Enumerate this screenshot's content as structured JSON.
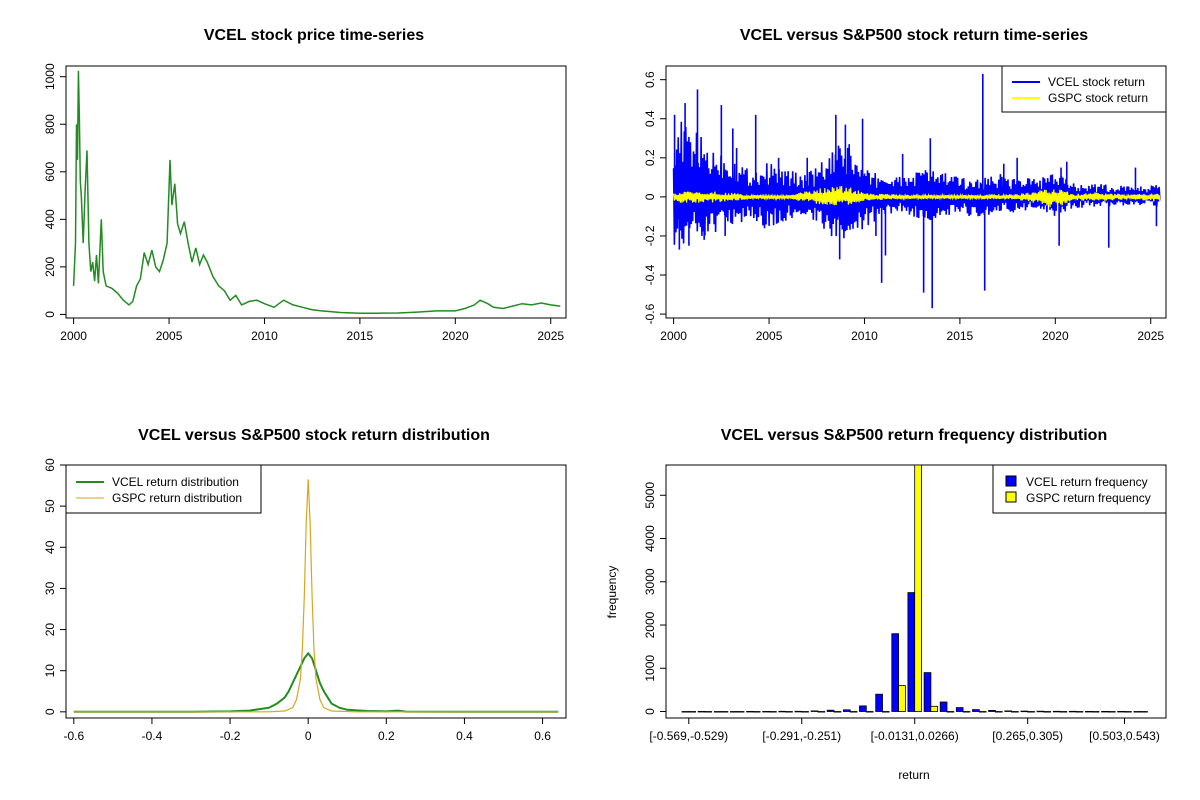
{
  "colors": {
    "vcel_price": "#228b22",
    "vcel_return": "#0000ff",
    "gspc_return": "#ffff00",
    "vcel_density": "#228b22",
    "gspc_density": "#daa520",
    "hist_vcel": "#0000ff",
    "hist_gspc": "#ffff00"
  },
  "chart_data": [
    {
      "id": "price",
      "type": "line",
      "title": "VCEL stock price time-series",
      "xlabel": "",
      "ylabel": "",
      "xlim": [
        1999.6,
        2025.8
      ],
      "ylim": [
        -15,
        1045
      ],
      "xticks": [
        2000,
        2005,
        2010,
        2015,
        2020,
        2025
      ],
      "yticks": [
        0,
        200,
        400,
        600,
        800,
        1000
      ],
      "series": [
        {
          "color_key": "vcel_price",
          "points": [
            [
              2000.0,
              120
            ],
            [
              2000.1,
              300
            ],
            [
              2000.15,
              800
            ],
            [
              2000.2,
              650
            ],
            [
              2000.25,
              1025
            ],
            [
              2000.3,
              820
            ],
            [
              2000.35,
              560
            ],
            [
              2000.4,
              500
            ],
            [
              2000.5,
              300
            ],
            [
              2000.6,
              520
            ],
            [
              2000.7,
              690
            ],
            [
              2000.8,
              300
            ],
            [
              2000.9,
              180
            ],
            [
              2001.0,
              220
            ],
            [
              2001.1,
              140
            ],
            [
              2001.2,
              250
            ],
            [
              2001.3,
              130
            ],
            [
              2001.45,
              400
            ],
            [
              2001.55,
              180
            ],
            [
              2001.7,
              120
            ],
            [
              2002.0,
              110
            ],
            [
              2002.3,
              90
            ],
            [
              2002.6,
              60
            ],
            [
              2002.9,
              40
            ],
            [
              2003.1,
              55
            ],
            [
              2003.3,
              120
            ],
            [
              2003.5,
              150
            ],
            [
              2003.7,
              260
            ],
            [
              2003.9,
              210
            ],
            [
              2004.1,
              270
            ],
            [
              2004.3,
              200
            ],
            [
              2004.5,
              180
            ],
            [
              2004.7,
              230
            ],
            [
              2004.9,
              300
            ],
            [
              2005.05,
              650
            ],
            [
              2005.15,
              460
            ],
            [
              2005.3,
              550
            ],
            [
              2005.45,
              380
            ],
            [
              2005.6,
              340
            ],
            [
              2005.8,
              390
            ],
            [
              2006.0,
              300
            ],
            [
              2006.2,
              220
            ],
            [
              2006.4,
              280
            ],
            [
              2006.6,
              210
            ],
            [
              2006.8,
              250
            ],
            [
              2007.0,
              220
            ],
            [
              2007.3,
              160
            ],
            [
              2007.6,
              120
            ],
            [
              2007.9,
              100
            ],
            [
              2008.2,
              60
            ],
            [
              2008.5,
              80
            ],
            [
              2008.8,
              40
            ],
            [
              2009.2,
              55
            ],
            [
              2009.6,
              60
            ],
            [
              2010.0,
              45
            ],
            [
              2010.5,
              30
            ],
            [
              2011.0,
              60
            ],
            [
              2011.5,
              40
            ],
            [
              2012.0,
              30
            ],
            [
              2012.5,
              20
            ],
            [
              2013.0,
              15
            ],
            [
              2014.0,
              8
            ],
            [
              2015.0,
              5
            ],
            [
              2016.0,
              5
            ],
            [
              2017.0,
              6
            ],
            [
              2018.0,
              10
            ],
            [
              2019.0,
              15
            ],
            [
              2020.0,
              15
            ],
            [
              2020.5,
              25
            ],
            [
              2021.0,
              40
            ],
            [
              2021.3,
              60
            ],
            [
              2021.7,
              45
            ],
            [
              2022.0,
              30
            ],
            [
              2022.5,
              25
            ],
            [
              2023.0,
              35
            ],
            [
              2023.5,
              45
            ],
            [
              2024.0,
              40
            ],
            [
              2024.5,
              48
            ],
            [
              2025.0,
              40
            ],
            [
              2025.5,
              35
            ]
          ]
        }
      ]
    },
    {
      "id": "returns",
      "type": "line",
      "title": "VCEL versus S&P500 stock return time-series",
      "xlabel": "",
      "ylabel": "",
      "xlim": [
        1999.6,
        2025.8
      ],
      "ylim": [
        -0.62,
        0.67
      ],
      "xticks": [
        2000,
        2005,
        2010,
        2015,
        2020,
        2025
      ],
      "yticks": [
        -0.6,
        -0.4,
        -0.2,
        0.0,
        0.2,
        0.4,
        0.6
      ],
      "legend": {
        "position": "top-right",
        "entries": [
          "VCEL stock return",
          "GSPC stock return"
        ]
      },
      "series": [
        {
          "name": "VCEL stock return",
          "color_key": "vcel_return",
          "band": [
            [
              2000,
              0.42,
              -0.26
            ],
            [
              2001,
              0.35,
              -0.22
            ],
            [
              2002,
              0.26,
              -0.2
            ],
            [
              2003,
              0.22,
              -0.18
            ],
            [
              2004,
              0.14,
              -0.1
            ],
            [
              2005,
              0.18,
              -0.18
            ],
            [
              2006,
              0.14,
              -0.12
            ],
            [
              2007,
              0.12,
              -0.1
            ],
            [
              2008,
              0.2,
              -0.2
            ],
            [
              2009,
              0.3,
              -0.26
            ],
            [
              2010,
              0.14,
              -0.16
            ],
            [
              2011,
              0.12,
              -0.1
            ],
            [
              2012,
              0.1,
              -0.08
            ],
            [
              2013,
              0.15,
              -0.12
            ],
            [
              2014,
              0.14,
              -0.12
            ],
            [
              2015,
              0.1,
              -0.08
            ],
            [
              2016,
              0.1,
              -0.12
            ],
            [
              2017,
              0.12,
              -0.08
            ],
            [
              2018,
              0.1,
              -0.08
            ],
            [
              2019,
              0.1,
              -0.06
            ],
            [
              2020,
              0.12,
              -0.1
            ],
            [
              2021,
              0.08,
              -0.06
            ],
            [
              2022,
              0.07,
              -0.05
            ],
            [
              2023,
              0.06,
              -0.05
            ],
            [
              2024,
              0.06,
              -0.04
            ],
            [
              2025,
              0.06,
              -0.05
            ]
          ],
          "spikes": [
            [
              2000.05,
              0.42
            ],
            [
              2000.3,
              -0.27
            ],
            [
              2000.6,
              0.48
            ],
            [
              2000.8,
              -0.25
            ],
            [
              2001.1,
              0.22
            ],
            [
              2001.25,
              0.55
            ],
            [
              2001.6,
              -0.22
            ],
            [
              2002.5,
              0.47
            ],
            [
              2002.7,
              -0.2
            ],
            [
              2003.1,
              0.35
            ],
            [
              2003.3,
              0.25
            ],
            [
              2004.3,
              0.42
            ],
            [
              2005.5,
              0.2
            ],
            [
              2007.0,
              0.2
            ],
            [
              2008.5,
              0.42
            ],
            [
              2008.7,
              -0.32
            ],
            [
              2009.0,
              0.37
            ],
            [
              2009.2,
              0.27
            ],
            [
              2009.9,
              0.4
            ],
            [
              2010.6,
              -0.2
            ],
            [
              2010.9,
              -0.44
            ],
            [
              2011.1,
              -0.3
            ],
            [
              2012.0,
              0.22
            ],
            [
              2013.1,
              -0.49
            ],
            [
              2013.45,
              0.3
            ],
            [
              2013.55,
              -0.57
            ],
            [
              2016.2,
              0.63
            ],
            [
              2016.3,
              -0.48
            ],
            [
              2017.3,
              0.17
            ],
            [
              2018.0,
              0.2
            ],
            [
              2020.2,
              -0.25
            ],
            [
              2020.3,
              0.15
            ],
            [
              2020.6,
              0.18
            ],
            [
              2022.8,
              -0.26
            ],
            [
              2024.2,
              0.15
            ],
            [
              2025.3,
              -0.15
            ]
          ]
        },
        {
          "name": "GSPC stock return",
          "color_key": "gspc_return",
          "band": [
            [
              2000,
              0.025,
              -0.03
            ],
            [
              2002,
              0.03,
              -0.03
            ],
            [
              2004,
              0.012,
              -0.012
            ],
            [
              2006,
              0.01,
              -0.01
            ],
            [
              2008,
              0.05,
              -0.05
            ],
            [
              2009,
              0.06,
              -0.05
            ],
            [
              2010,
              0.02,
              -0.02
            ],
            [
              2012,
              0.012,
              -0.012
            ],
            [
              2014,
              0.01,
              -0.01
            ],
            [
              2016,
              0.012,
              -0.012
            ],
            [
              2018,
              0.015,
              -0.015
            ],
            [
              2020,
              0.05,
              -0.06
            ],
            [
              2021,
              0.015,
              -0.015
            ],
            [
              2022,
              0.025,
              -0.025
            ],
            [
              2024,
              0.012,
              -0.012
            ],
            [
              2025,
              0.02,
              -0.025
            ]
          ]
        }
      ]
    },
    {
      "id": "density",
      "type": "line",
      "title": "VCEL versus S&P500 stock return distribution",
      "xlabel": "",
      "ylabel": "",
      "xlim": [
        -0.62,
        0.66
      ],
      "ylim": [
        -1.5,
        60
      ],
      "xticks": [
        -0.6,
        -0.4,
        -0.2,
        0.0,
        0.2,
        0.4,
        0.6
      ],
      "yticks": [
        0,
        10,
        20,
        30,
        40,
        50,
        60
      ],
      "legend": {
        "position": "top-left",
        "entries": [
          "VCEL return distribution",
          "GSPC return distribution"
        ]
      },
      "series": [
        {
          "name": "VCEL return distribution",
          "color_key": "vcel_density",
          "points": [
            [
              -0.6,
              0
            ],
            [
              -0.3,
              0
            ],
            [
              -0.2,
              0.1
            ],
            [
              -0.15,
              0.3
            ],
            [
              -0.1,
              1
            ],
            [
              -0.08,
              2
            ],
            [
              -0.06,
              3.5
            ],
            [
              -0.05,
              5
            ],
            [
              -0.04,
              7
            ],
            [
              -0.03,
              9
            ],
            [
              -0.02,
              11
            ],
            [
              -0.01,
              13
            ],
            [
              0.0,
              14.2
            ],
            [
              0.01,
              13
            ],
            [
              0.02,
              10
            ],
            [
              0.03,
              7
            ],
            [
              0.04,
              5
            ],
            [
              0.05,
              3.5
            ],
            [
              0.06,
              2
            ],
            [
              0.08,
              1
            ],
            [
              0.1,
              0.5
            ],
            [
              0.15,
              0.2
            ],
            [
              0.2,
              0.1
            ],
            [
              0.23,
              0.3
            ],
            [
              0.25,
              0.05
            ],
            [
              0.4,
              0.02
            ],
            [
              0.64,
              0
            ]
          ]
        },
        {
          "name": "GSPC return distribution",
          "color_key": "gspc_density",
          "points": [
            [
              -0.6,
              0
            ],
            [
              -0.1,
              0
            ],
            [
              -0.06,
              0.2
            ],
            [
              -0.04,
              1
            ],
            [
              -0.03,
              3
            ],
            [
              -0.02,
              8
            ],
            [
              -0.015,
              15
            ],
            [
              -0.01,
              28
            ],
            [
              -0.005,
              46
            ],
            [
              0.0,
              56.5
            ],
            [
              0.005,
              46
            ],
            [
              0.01,
              28
            ],
            [
              0.015,
              15
            ],
            [
              0.02,
              8
            ],
            [
              0.03,
              3
            ],
            [
              0.04,
              1
            ],
            [
              0.06,
              0.2
            ],
            [
              0.12,
              0
            ],
            [
              0.64,
              0
            ]
          ]
        }
      ]
    },
    {
      "id": "histogram",
      "type": "bar",
      "title": "VCEL versus S&P500 return frequency distribution",
      "xlabel": "return",
      "ylabel": "frequency",
      "ylim": [
        -150,
        5700
      ],
      "yticks": [
        0,
        1000,
        2000,
        3000,
        4000,
        5000
      ],
      "tick_labels": [
        "[-0.569,-0.529)",
        "[-0.291,-0.251)",
        "[-0.0131,0.0266)",
        "[0.265,0.305)",
        "[0.503,0.543)"
      ],
      "tick_label_bins": [
        0,
        7,
        14,
        21,
        27
      ],
      "bins": 29,
      "legend": {
        "position": "top-right",
        "entries": [
          "VCEL return frequency",
          "GSPC return frequency"
        ]
      },
      "series": [
        {
          "name": "VCEL return frequency",
          "color_key": "hist_vcel",
          "values": [
            1,
            2,
            1,
            1,
            2,
            3,
            4,
            5,
            15,
            30,
            40,
            130,
            400,
            1800,
            2750,
            900,
            220,
            90,
            45,
            25,
            15,
            10,
            8,
            6,
            4,
            3,
            2,
            2,
            1
          ]
        },
        {
          "name": "GSPC return frequency",
          "color_key": "hist_gspc",
          "values": [
            0,
            0,
            0,
            0,
            0,
            0,
            0,
            0,
            0,
            0,
            0,
            0,
            0,
            600,
            5800,
            120,
            0,
            0,
            0,
            0,
            0,
            0,
            0,
            0,
            0,
            0,
            0,
            0,
            0
          ]
        }
      ]
    }
  ]
}
